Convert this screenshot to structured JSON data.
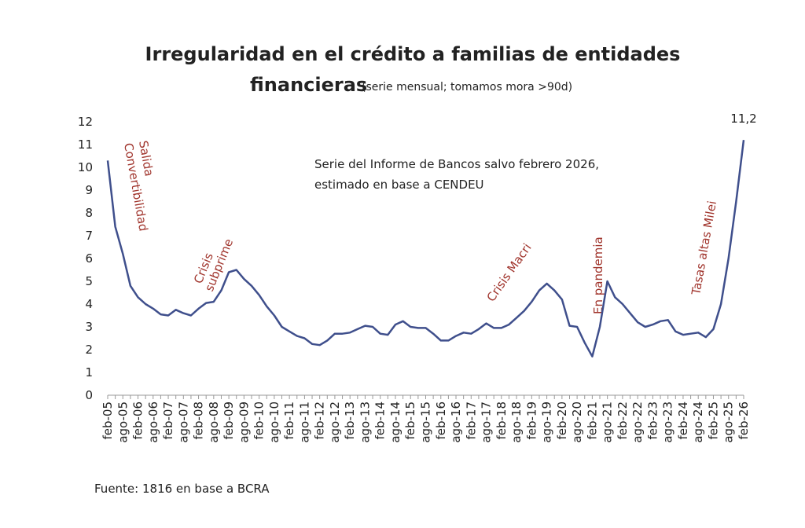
{
  "chart_data": {
    "type": "line",
    "title": "Irregularidad en el crédito a familias de entidades",
    "title_line2": "financieras",
    "subtitle": "(serie mensual; tomamos mora >90d)",
    "note_lines": [
      "Serie del Informe de Bancos salvo febrero 2026,",
      "estimado en base a CENDEU"
    ],
    "source": "Fuente: 1816 en base a BCRA",
    "annotations": [
      {
        "lines": [
          "Salida",
          "Convertibilidad"
        ]
      },
      {
        "lines": [
          "Crisis",
          "subprime"
        ]
      },
      {
        "lines": [
          "Crisis Macri"
        ]
      },
      {
        "lines": [
          "En pandemia"
        ]
      },
      {
        "lines": [
          "Tasas altas Milei"
        ]
      }
    ],
    "annotation_color": "#a0342c",
    "categories": [
      "feb-05",
      null,
      "ago-05",
      null,
      "feb-06",
      null,
      "ago-06",
      null,
      "feb-07",
      null,
      "ago-07",
      null,
      "feb-08",
      null,
      "ago-08",
      null,
      "feb-09",
      null,
      "ago-09",
      null,
      "feb-10",
      null,
      "ago-10",
      null,
      "feb-11",
      null,
      "ago-11",
      null,
      "feb-12",
      null,
      "ago-12",
      null,
      "feb-13",
      null,
      "ago-13",
      null,
      "feb-14",
      null,
      "ago-14",
      null,
      "feb-15",
      null,
      "ago-15",
      null,
      "feb-16",
      null,
      "ago-16",
      null,
      "feb-17",
      null,
      "ago-17",
      null,
      "feb-18",
      null,
      "ago-18",
      null,
      "feb-19",
      null,
      "ago-19",
      null,
      "feb-20",
      null,
      "ago-20",
      null,
      "feb-21",
      null,
      "ago-21",
      null,
      "feb-22",
      null,
      "ago-22",
      null,
      "feb-23",
      null,
      "ago-23",
      null,
      "feb-24",
      null,
      "ago-24",
      null,
      "feb-25",
      null,
      "ago-25",
      null,
      "feb-26"
    ],
    "series": [
      {
        "color": "#3f4f8c",
        "values": [
          10.3,
          7.4,
          6.2,
          4.8,
          4.3,
          4.0,
          3.8,
          3.55,
          3.5,
          3.75,
          3.6,
          3.5,
          3.8,
          4.05,
          4.1,
          4.6,
          5.4,
          5.5,
          5.1,
          4.8,
          4.4,
          3.9,
          3.5,
          3.0,
          2.8,
          2.6,
          2.5,
          2.25,
          2.2,
          2.4,
          2.7,
          2.7,
          2.75,
          2.9,
          3.05,
          3.0,
          2.7,
          2.65,
          3.1,
          3.25,
          3.0,
          2.95,
          2.95,
          2.7,
          2.4,
          2.4,
          2.6,
          2.75,
          2.7,
          2.9,
          3.15,
          2.95,
          2.95,
          3.1,
          3.4,
          3.7,
          4.1,
          4.6,
          4.9,
          4.6,
          4.2,
          3.05,
          3.0,
          2.3,
          1.7,
          3.0,
          5.0,
          4.3,
          4.0,
          3.6,
          3.2,
          3.0,
          3.1,
          3.25,
          3.3,
          2.8,
          2.65,
          2.7,
          2.75,
          2.55,
          2.9,
          4.0,
          6.0,
          8.5,
          11.2
        ],
        "value_labels": [
          null,
          null,
          null,
          null,
          null,
          null,
          null,
          null,
          null,
          null,
          null,
          null,
          null,
          null,
          null,
          null,
          null,
          null,
          null,
          null,
          null,
          null,
          null,
          null,
          null,
          null,
          null,
          null,
          null,
          null,
          null,
          null,
          null,
          null,
          null,
          null,
          null,
          null,
          null,
          null,
          null,
          null,
          null,
          null,
          null,
          null,
          null,
          null,
          null,
          null,
          null,
          null,
          null,
          null,
          null,
          null,
          null,
          null,
          null,
          null,
          null,
          null,
          null,
          null,
          null,
          null,
          null,
          null,
          null,
          null,
          null,
          null,
          null,
          null,
          null,
          null,
          null,
          null,
          null,
          null,
          null,
          null,
          null,
          null,
          "11,2"
        ]
      }
    ],
    "ylim": [
      0,
      12
    ],
    "yticks": [
      0,
      1,
      2,
      3,
      4,
      5,
      6,
      7,
      8,
      9,
      10,
      11,
      12
    ],
    "grid": false
  }
}
